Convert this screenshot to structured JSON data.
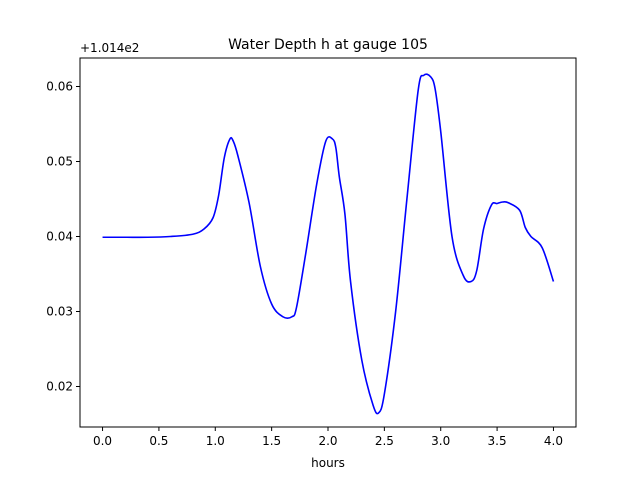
{
  "chart_data": {
    "type": "line",
    "title": "Water Depth h at gauge 105",
    "xlabel": "hours",
    "ylabel": "",
    "y_offset_label": "+1.014e2",
    "xlim": [
      -0.2,
      4.2
    ],
    "ylim": [
      0.0146,
      0.0638
    ],
    "xticks": [
      0.0,
      0.5,
      1.0,
      1.5,
      2.0,
      2.5,
      3.0,
      3.5,
      4.0
    ],
    "xtick_labels": [
      "0.0",
      "0.5",
      "1.0",
      "1.5",
      "2.0",
      "2.5",
      "3.0",
      "3.5",
      "4.0"
    ],
    "yticks": [
      0.02,
      0.03,
      0.04,
      0.05,
      0.06
    ],
    "ytick_labels": [
      "0.02",
      "0.03",
      "0.04",
      "0.05",
      "0.06"
    ],
    "grid": false,
    "series": [
      {
        "color": "#0000ff",
        "x": [
          0.0,
          0.2,
          0.4,
          0.6,
          0.8,
          0.9,
          0.98,
          1.03,
          1.08,
          1.13,
          1.16,
          1.2,
          1.3,
          1.4,
          1.5,
          1.6,
          1.68,
          1.72,
          1.8,
          1.9,
          1.98,
          2.04,
          2.07,
          2.1,
          2.15,
          2.2,
          2.3,
          2.4,
          2.45,
          2.5,
          2.6,
          2.7,
          2.8,
          2.85,
          2.91,
          2.95,
          3.0,
          3.1,
          3.2,
          3.27,
          3.32,
          3.38,
          3.45,
          3.5,
          3.55,
          3.6,
          3.7,
          3.75,
          3.8,
          3.9,
          4.0
        ],
        "y": [
          0.0399,
          0.0399,
          0.0399,
          0.04,
          0.0403,
          0.041,
          0.0425,
          0.0455,
          0.0505,
          0.053,
          0.0527,
          0.0508,
          0.0445,
          0.036,
          0.031,
          0.0293,
          0.0293,
          0.0305,
          0.0375,
          0.047,
          0.0527,
          0.053,
          0.0518,
          0.048,
          0.043,
          0.034,
          0.0235,
          0.0175,
          0.0165,
          0.019,
          0.03,
          0.045,
          0.0595,
          0.0615,
          0.0613,
          0.0597,
          0.054,
          0.04,
          0.0348,
          0.034,
          0.0355,
          0.041,
          0.0442,
          0.0444,
          0.0446,
          0.0445,
          0.0435,
          0.0412,
          0.04,
          0.0385,
          0.034
        ]
      }
    ]
  }
}
